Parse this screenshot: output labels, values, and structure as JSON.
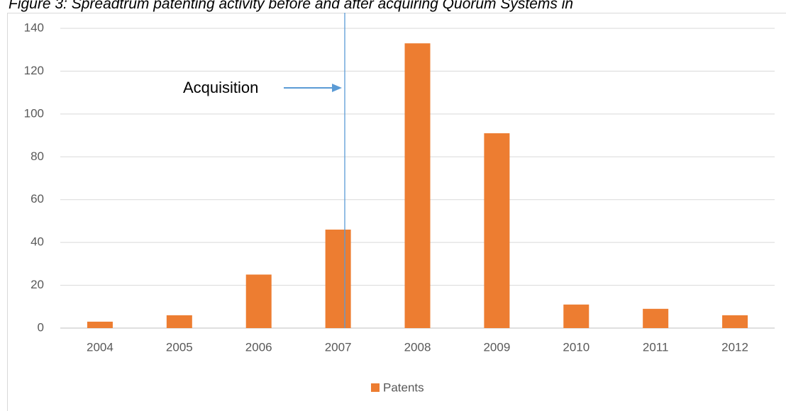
{
  "chart_data": {
    "type": "bar",
    "title": "Figure 3: Spreadtrum patenting activity before and after acquiring Quorum Systems in",
    "annotation": "Acquisition",
    "categories": [
      "2004",
      "2005",
      "2006",
      "2007",
      "2008",
      "2009",
      "2010",
      "2011",
      "2012"
    ],
    "series": [
      {
        "name": "Patents",
        "color": "#ed7d31",
        "values": [
          3,
          6,
          25,
          46,
          133,
          91,
          11,
          9,
          6
        ]
      }
    ],
    "ylim": [
      0,
      140
    ],
    "yticks": [
      0,
      20,
      40,
      60,
      80,
      100,
      120,
      140
    ],
    "grid": true,
    "legend": "bottom"
  }
}
